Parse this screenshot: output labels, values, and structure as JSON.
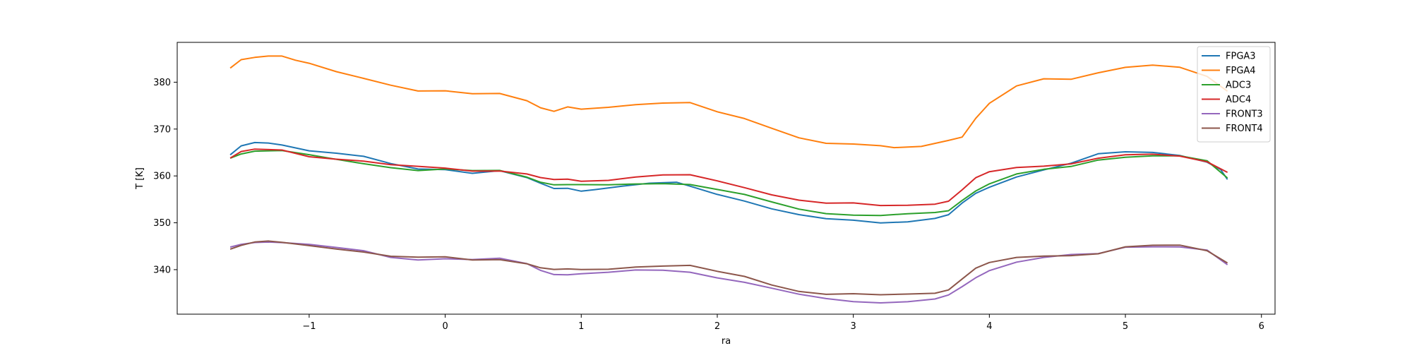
{
  "chart_data": {
    "type": "line",
    "xlabel": "ra",
    "ylabel": "T [K]",
    "xlim": [
      -1.97,
      6.1
    ],
    "ylim": [
      330.5,
      388.5
    ],
    "xticks": [
      -1,
      0,
      1,
      2,
      3,
      4,
      5,
      6
    ],
    "yticks": [
      340,
      350,
      360,
      370,
      380
    ],
    "grid": false,
    "legend": "top-right",
    "series": [
      {
        "name": "FPGA3",
        "color": "#1f77b4",
        "x": [
          -1.58,
          -1.5,
          -1.4,
          -1.3,
          -1.2,
          -1.0,
          -0.8,
          -0.6,
          -0.4,
          -0.2,
          0.0,
          0.2,
          0.4,
          0.6,
          0.7,
          0.8,
          0.9,
          1.0,
          1.1,
          1.3,
          1.5,
          1.7,
          1.8,
          2.0,
          2.2,
          2.4,
          2.6,
          2.8,
          3.0,
          3.2,
          3.4,
          3.6,
          3.7,
          3.8,
          3.9,
          4.0,
          4.2,
          4.4,
          4.6,
          4.8,
          5.0,
          5.2,
          5.4,
          5.6,
          5.7,
          5.75
        ],
        "y": [
          364.5,
          366.2,
          366.9,
          367.0,
          366.8,
          365.6,
          364.9,
          364.0,
          362.4,
          361.4,
          361.5,
          360.8,
          361.2,
          359.5,
          358.2,
          357.2,
          357.5,
          357.0,
          357.2,
          357.7,
          358.2,
          358.5,
          357.9,
          356.3,
          354.8,
          352.9,
          351.5,
          350.7,
          350.6,
          350.2,
          350.4,
          350.9,
          351.5,
          354.0,
          356.3,
          357.8,
          360.0,
          361.3,
          362.5,
          364.5,
          365.1,
          365.2,
          364.6,
          363.0,
          361.2,
          359.0
        ]
      },
      {
        "name": "FPGA4",
        "color": "#ff7f0e",
        "x": [
          -1.58,
          -1.5,
          -1.4,
          -1.3,
          -1.2,
          -1.1,
          -1.0,
          -0.8,
          -0.6,
          -0.4,
          -0.2,
          0.0,
          0.2,
          0.4,
          0.6,
          0.7,
          0.8,
          0.9,
          1.0,
          1.2,
          1.4,
          1.6,
          1.8,
          2.0,
          2.2,
          2.4,
          2.6,
          2.8,
          3.0,
          3.2,
          3.3,
          3.5,
          3.7,
          3.8,
          3.9,
          4.0,
          4.2,
          4.4,
          4.6,
          4.8,
          5.0,
          5.2,
          5.4,
          5.6,
          5.75
        ],
        "y": [
          382.8,
          384.8,
          385.5,
          385.8,
          385.6,
          384.5,
          383.8,
          382.2,
          381.0,
          379.6,
          378.2,
          378.0,
          377.3,
          377.5,
          376.2,
          374.8,
          373.9,
          374.6,
          374.0,
          374.5,
          375.3,
          375.8,
          375.8,
          373.6,
          372.0,
          370.0,
          368.2,
          367.2,
          367.0,
          366.4,
          365.8,
          366.1,
          367.6,
          368.5,
          372.5,
          375.5,
          379.0,
          380.5,
          380.6,
          382.2,
          383.4,
          383.7,
          383.0,
          381.0,
          378.0
        ]
      },
      {
        "name": "ADC3",
        "color": "#2ca02c",
        "x": [
          -1.58,
          -1.5,
          -1.4,
          -1.2,
          -1.0,
          -0.8,
          -0.6,
          -0.4,
          -0.2,
          0.0,
          0.2,
          0.4,
          0.6,
          0.7,
          0.8,
          0.9,
          1.0,
          1.2,
          1.4,
          1.6,
          1.8,
          2.0,
          2.2,
          2.4,
          2.6,
          2.8,
          3.0,
          3.2,
          3.4,
          3.6,
          3.7,
          3.8,
          3.9,
          4.0,
          4.2,
          4.4,
          4.6,
          4.8,
          5.0,
          5.2,
          5.4,
          5.6,
          5.75
        ],
        "y": [
          364.0,
          364.9,
          365.3,
          365.2,
          364.3,
          363.5,
          362.8,
          362.0,
          361.2,
          361.3,
          360.9,
          361.1,
          359.9,
          358.9,
          358.2,
          358.0,
          357.9,
          358.0,
          358.4,
          358.6,
          358.3,
          357.0,
          355.8,
          354.3,
          353.0,
          352.2,
          351.8,
          351.5,
          351.7,
          352.0,
          352.6,
          355.0,
          357.0,
          358.3,
          360.2,
          361.2,
          362.0,
          363.6,
          364.2,
          364.3,
          364.1,
          363.0,
          359.5
        ]
      },
      {
        "name": "ADC4",
        "color": "#d62728",
        "x": [
          -1.58,
          -1.5,
          -1.4,
          -1.2,
          -1.0,
          -0.8,
          -0.6,
          -0.4,
          -0.2,
          0.0,
          0.2,
          0.4,
          0.6,
          0.7,
          0.8,
          0.9,
          1.0,
          1.2,
          1.4,
          1.6,
          1.8,
          2.0,
          2.2,
          2.4,
          2.6,
          2.8,
          3.0,
          3.2,
          3.4,
          3.6,
          3.7,
          3.8,
          3.9,
          4.0,
          4.2,
          4.4,
          4.6,
          4.8,
          5.0,
          5.2,
          5.4,
          5.6,
          5.75
        ],
        "y": [
          363.8,
          365.0,
          365.5,
          365.5,
          364.3,
          363.8,
          363.2,
          362.2,
          361.8,
          361.6,
          361.2,
          361.3,
          360.5,
          359.5,
          359.0,
          359.2,
          359.0,
          359.3,
          359.9,
          360.1,
          360.0,
          358.8,
          357.6,
          356.2,
          355.0,
          354.1,
          354.0,
          353.5,
          353.8,
          354.2,
          354.8,
          357.0,
          359.4,
          360.7,
          361.8,
          362.3,
          362.8,
          363.8,
          364.3,
          364.4,
          364.2,
          363.2,
          361.0
        ]
      },
      {
        "name": "FRONT3",
        "color": "#9467bd",
        "x": [
          -1.58,
          -1.5,
          -1.4,
          -1.3,
          -1.2,
          -1.0,
          -0.8,
          -0.6,
          -0.4,
          -0.2,
          0.0,
          0.2,
          0.4,
          0.6,
          0.7,
          0.8,
          0.9,
          1.0,
          1.2,
          1.4,
          1.6,
          1.8,
          2.0,
          2.2,
          2.4,
          2.6,
          2.8,
          3.0,
          3.2,
          3.4,
          3.6,
          3.7,
          3.8,
          3.9,
          4.0,
          4.2,
          4.4,
          4.6,
          4.8,
          5.0,
          5.2,
          5.4,
          5.6,
          5.75
        ],
        "y": [
          344.6,
          345.4,
          346.0,
          346.1,
          345.8,
          345.2,
          344.5,
          344.0,
          342.8,
          342.3,
          342.4,
          342.0,
          342.2,
          341.2,
          340.0,
          339.2,
          339.0,
          339.0,
          339.2,
          339.8,
          340.0,
          339.7,
          338.4,
          337.2,
          335.8,
          334.6,
          333.9,
          333.4,
          333.1,
          333.1,
          333.5,
          334.4,
          336.4,
          338.5,
          340.0,
          341.6,
          342.4,
          343.0,
          343.4,
          345.0,
          345.1,
          344.9,
          344.0,
          340.8
        ]
      },
      {
        "name": "FRONT4",
        "color": "#8c564b",
        "x": [
          -1.58,
          -1.5,
          -1.4,
          -1.3,
          -1.2,
          -1.0,
          -0.8,
          -0.6,
          -0.4,
          -0.2,
          0.0,
          0.2,
          0.4,
          0.6,
          0.7,
          0.8,
          0.9,
          1.0,
          1.2,
          1.4,
          1.6,
          1.8,
          2.0,
          2.2,
          2.4,
          2.6,
          2.8,
          3.0,
          3.2,
          3.4,
          3.6,
          3.7,
          3.8,
          3.9,
          4.0,
          4.2,
          4.4,
          4.6,
          4.8,
          5.0,
          5.2,
          5.4,
          5.6,
          5.75
        ],
        "y": [
          344.6,
          345.4,
          345.9,
          345.9,
          345.6,
          345.1,
          344.6,
          344.0,
          342.9,
          342.5,
          342.5,
          342.0,
          342.3,
          341.5,
          340.5,
          339.9,
          339.9,
          339.9,
          340.2,
          340.8,
          340.9,
          340.8,
          339.4,
          338.4,
          336.8,
          335.6,
          334.9,
          334.8,
          334.4,
          334.6,
          335.0,
          335.9,
          338.2,
          340.3,
          341.3,
          342.4,
          342.9,
          343.2,
          343.6,
          344.9,
          345.0,
          345.0,
          344.0,
          341.6
        ]
      }
    ]
  }
}
